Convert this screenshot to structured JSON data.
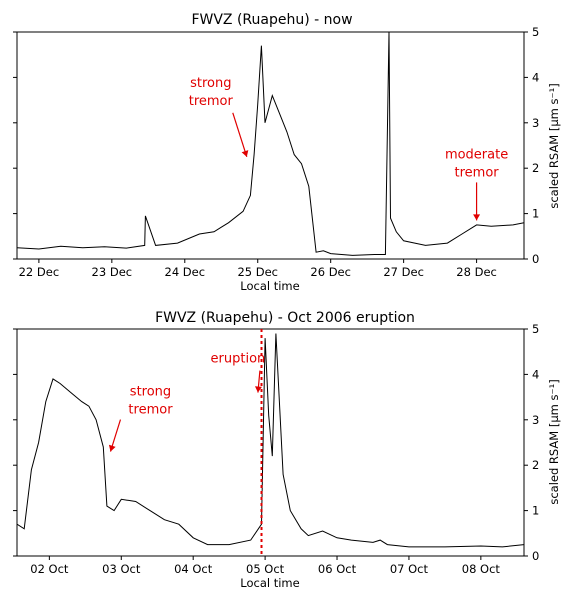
{
  "chart_data": [
    {
      "type": "line",
      "title": "FWVZ (Ruapehu) - now",
      "xlabel": "Local time",
      "ylabel": "scaled RSAM [μm s⁻¹]",
      "x_ticks": [
        "22 Dec",
        "23 Dec",
        "24 Dec",
        "25 Dec",
        "26 Dec",
        "27 Dec",
        "28 Dec"
      ],
      "xlim_days": [
        21.7,
        28.65
      ],
      "ylim": [
        0,
        5
      ],
      "y_ticks": [
        "0",
        "1",
        "2",
        "3",
        "4",
        "5"
      ],
      "grid": false,
      "series": [
        {
          "color": "#000000",
          "x_days": [
            21.7,
            22.0,
            22.3,
            22.6,
            22.9,
            23.2,
            23.45,
            23.46,
            23.6,
            23.9,
            24.2,
            24.4,
            24.5,
            24.6,
            24.8,
            24.9,
            24.95,
            25.0,
            25.05,
            25.1,
            25.2,
            25.3,
            25.4,
            25.5,
            25.6,
            25.7,
            25.8,
            25.9,
            26.0,
            26.3,
            26.6,
            26.75,
            26.8,
            26.82,
            26.9,
            27.0,
            27.3,
            27.6,
            27.8,
            28.0,
            28.2,
            28.5,
            28.65
          ],
          "values": [
            0.25,
            0.22,
            0.28,
            0.25,
            0.27,
            0.24,
            0.3,
            0.95,
            0.3,
            0.35,
            0.55,
            0.6,
            0.7,
            0.8,
            1.05,
            1.4,
            2.3,
            3.4,
            4.7,
            3.0,
            3.6,
            3.2,
            2.8,
            2.3,
            2.1,
            1.6,
            0.15,
            0.18,
            0.12,
            0.08,
            0.1,
            0.1,
            5.0,
            0.9,
            0.6,
            0.4,
            0.3,
            0.35,
            0.55,
            0.75,
            0.72,
            0.75,
            0.8
          ]
        }
      ],
      "annotations": [
        {
          "text_lines": [
            "strong",
            "tremor"
          ],
          "x_day": 24.85,
          "y": 2.25
        },
        {
          "text_lines": [
            "moderate",
            "tremor"
          ],
          "x_day": 28.0,
          "y": 0.85
        }
      ]
    },
    {
      "type": "line",
      "title": "FWVZ (Ruapehu) - Oct 2006 eruption",
      "xlabel": "Local time",
      "ylabel": "scaled RSAM [μm s⁻¹]",
      "x_ticks": [
        "02 Oct",
        "03 Oct",
        "04 Oct",
        "05 Oct",
        "06 Oct",
        "07 Oct",
        "08 Oct"
      ],
      "xlim_days": [
        1.55,
        8.6
      ],
      "ylim": [
        0,
        5
      ],
      "y_ticks": [
        "0",
        "1",
        "2",
        "3",
        "4",
        "5"
      ],
      "grid": false,
      "eruption_day": 4.95,
      "series": [
        {
          "color": "#000000",
          "x_days": [
            1.55,
            1.65,
            1.75,
            1.85,
            1.95,
            2.05,
            2.15,
            2.3,
            2.45,
            2.55,
            2.65,
            2.75,
            2.8,
            2.9,
            3.0,
            3.2,
            3.4,
            3.6,
            3.8,
            4.0,
            4.2,
            4.5,
            4.8,
            4.95,
            5.0,
            5.05,
            5.1,
            5.15,
            5.25,
            5.35,
            5.5,
            5.6,
            5.8,
            6.0,
            6.2,
            6.5,
            6.6,
            6.7,
            7.0,
            7.5,
            8.0,
            8.3,
            8.6
          ],
          "values": [
            0.7,
            0.6,
            1.9,
            2.5,
            3.4,
            3.9,
            3.8,
            3.6,
            3.4,
            3.3,
            3.0,
            2.4,
            1.1,
            1.0,
            1.25,
            1.2,
            1.0,
            0.8,
            0.7,
            0.4,
            0.25,
            0.25,
            0.35,
            0.7,
            4.8,
            3.1,
            2.2,
            4.9,
            1.8,
            1.0,
            0.6,
            0.45,
            0.55,
            0.4,
            0.35,
            0.3,
            0.35,
            0.25,
            0.2,
            0.2,
            0.22,
            0.2,
            0.25
          ]
        }
      ],
      "annotations": [
        {
          "text_lines": [
            "strong",
            "tremor"
          ],
          "x_day": 2.85,
          "y": 2.3
        },
        {
          "text_lines": [
            "eruption"
          ],
          "x_day": 4.9,
          "y": 3.6
        }
      ]
    }
  ]
}
